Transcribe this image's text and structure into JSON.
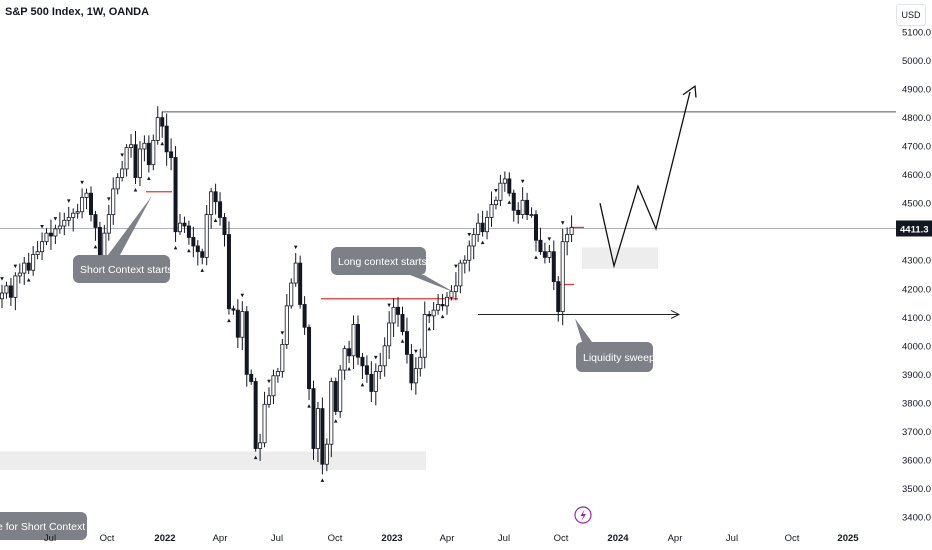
{
  "header": {
    "title": "S&P 500 Index, 1W, OANDA",
    "currency": "USD"
  },
  "price_label": "4411.3",
  "chart_data": {
    "type": "candlestick",
    "title": "S&P 500 Index, 1W, OANDA",
    "ylim": [
      3400,
      5150
    ],
    "y_ticks": [
      "3400.0",
      "3500.0",
      "3600.0",
      "3700.0",
      "3800.0",
      "3900.0",
      "4000.0",
      "4100.0",
      "4200.0",
      "4300.0",
      "4400.0",
      "4500.0",
      "4600.0",
      "4700.0",
      "4800.0",
      "4900.0",
      "5000.0",
      "5100.0"
    ],
    "x_ticks": [
      {
        "label": "Jul",
        "t": "2021-07"
      },
      {
        "label": "Oct",
        "t": "2021-10"
      },
      {
        "label": "2022",
        "t": "2022-01",
        "bold": true
      },
      {
        "label": "Apr",
        "t": "2022-04"
      },
      {
        "label": "Jul",
        "t": "2022-07"
      },
      {
        "label": "Oct",
        "t": "2022-10"
      },
      {
        "label": "2023",
        "t": "2023-01",
        "bold": true
      },
      {
        "label": "Apr",
        "t": "2023-04"
      },
      {
        "label": "Jul",
        "t": "2023-07"
      },
      {
        "label": "Oct",
        "t": "2023-10"
      },
      {
        "label": "2024",
        "t": "2024-01",
        "bold": true
      },
      {
        "label": "Apr",
        "t": "2024-04"
      },
      {
        "label": "Jul",
        "t": "2024-07"
      },
      {
        "label": "Oct",
        "t": "2024-10"
      },
      {
        "label": "2025",
        "t": "2025-01",
        "bold": true
      }
    ],
    "closes": [
      4185,
      4210,
      4170,
      4245,
      4255,
      4290,
      4265,
      4320,
      4330,
      4365,
      4395,
      4385,
      4410,
      4420,
      4440,
      4450,
      4465,
      4470,
      4520,
      4535,
      4460,
      4415,
      4300,
      4395,
      4460,
      4550,
      4590,
      4620,
      4695,
      4705,
      4590,
      4690,
      4710,
      4635,
      4720,
      4800,
      4770,
      4680,
      4660,
      4400,
      4430,
      4420,
      4380,
      4350,
      4330,
      4310,
      4460,
      4540,
      4505,
      4450,
      4390,
      4130,
      4125,
      4030,
      4120,
      3900,
      3875,
      3640,
      3660,
      3795,
      3825,
      3895,
      3910,
      4005,
      4140,
      4220,
      4290,
      4145,
      4065,
      3850,
      3640,
      3780,
      3585,
      3655,
      3875,
      3770,
      3915,
      3990,
      3965,
      4075,
      3960,
      3930,
      3900,
      3840,
      3910,
      3930,
      4000,
      4080,
      4135,
      4110,
      4050,
      3970,
      3870,
      3920,
      3960,
      4110,
      4105,
      4125,
      4145,
      4140,
      4170,
      4190,
      4210,
      4290,
      4300,
      4350,
      4390,
      4430,
      4400,
      4450,
      4495,
      4510,
      4570,
      4585,
      4535,
      4475,
      4460,
      4510,
      4460,
      4460,
      4370,
      4330,
      4310,
      4330,
      4225,
      4120,
      4365,
      4390,
      4415
    ],
    "levels": [
      {
        "price": 4820,
        "kind": "horizontal-line"
      },
      {
        "price": 4411.3,
        "kind": "current-price-line"
      },
      {
        "price": 4155,
        "kind": "red-level"
      },
      {
        "price": 4110,
        "kind": "arrow-line"
      },
      {
        "price": 4310,
        "kind": "zone"
      },
      {
        "price": 3600,
        "kind": "zone"
      }
    ],
    "projection": [
      4411.3,
      4500,
      4280,
      4560,
      4410,
      4820
    ],
    "annotations": [
      {
        "text": "Short Context starts"
      },
      {
        "text": "Long context starts"
      },
      {
        "text": "Liquidity sweep"
      },
      {
        "text": "e for Short Context"
      }
    ]
  }
}
